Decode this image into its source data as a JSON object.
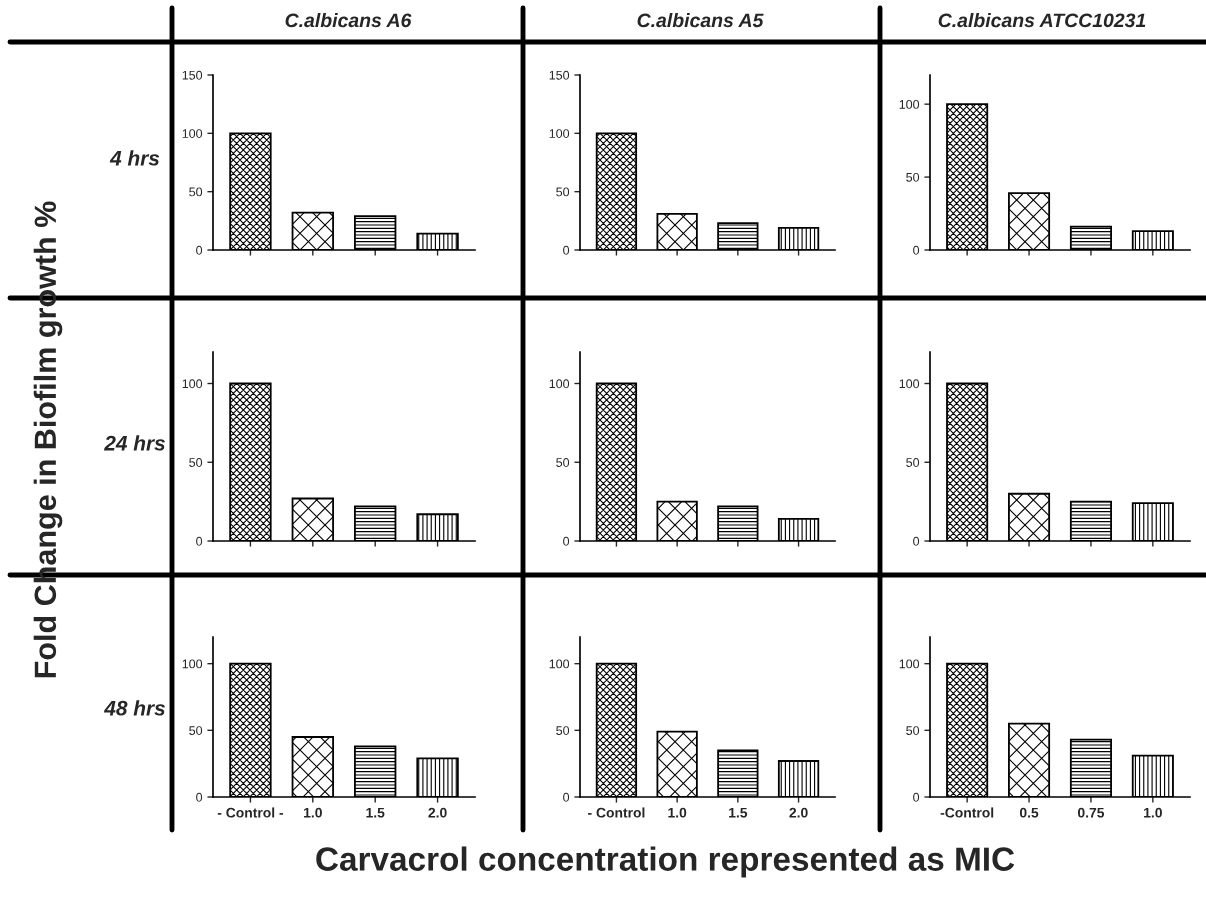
{
  "chart_data": [
    {
      "type": "bar",
      "title": "C.albicans A6",
      "ylabel": "4 hrs",
      "annotations": [
        "Fold Change in Biofilm growth %",
        "Carvacrol concentration represented as MIC"
      ],
      "categories": [
        null,
        null,
        null,
        null
      ],
      "values": [
        100,
        32,
        29,
        14
      ],
      "color": "#000000",
      "ylim": [
        0,
        150
      ],
      "yticks": [
        0,
        50,
        100,
        150
      ],
      "tick_labels": "y"
    },
    {
      "type": "bar",
      "title": "C.albicans A5",
      "categories": [
        null,
        null,
        null,
        null
      ],
      "values": [
        100,
        31,
        23,
        19
      ],
      "color": "#000000",
      "ylim": [
        0,
        150
      ],
      "yticks": [
        0,
        50,
        100,
        150
      ],
      "tick_labels": "y"
    },
    {
      "type": "bar",
      "title": "C.albicans ATCC10231",
      "categories": [
        null,
        null,
        null,
        null
      ],
      "values": [
        100,
        39,
        16,
        13
      ],
      "color": "#000000",
      "ylim": [
        0,
        120
      ],
      "yticks": [
        0,
        50,
        100
      ],
      "tick_labels": "y"
    },
    {
      "type": "bar",
      "ylabel": "24 hrs",
      "categories": [
        null,
        null,
        null,
        null
      ],
      "values": [
        100,
        27,
        22,
        17
      ],
      "color": "#000000",
      "ylim": [
        0,
        120
      ],
      "yticks": [
        0,
        50,
        100
      ],
      "tick_labels": "y"
    },
    {
      "type": "bar",
      "categories": [
        null,
        null,
        null,
        null
      ],
      "values": [
        100,
        25,
        22,
        14
      ],
      "color": "#000000",
      "ylim": [
        0,
        120
      ],
      "yticks": [
        0,
        50,
        100
      ],
      "tick_labels": "y"
    },
    {
      "type": "bar",
      "categories": [
        null,
        null,
        null,
        null
      ],
      "values": [
        100,
        30,
        25,
        24
      ],
      "color": "#000000",
      "ylim": [
        0,
        120
      ],
      "yticks": [
        0,
        50,
        100
      ],
      "tick_labels": "y"
    },
    {
      "type": "bar",
      "ylabel": "48 hrs",
      "categories": [
        "- Control -",
        "1.0",
        "1.5",
        "2.0"
      ],
      "values": [
        100,
        45,
        38,
        29
      ],
      "color": "#000000",
      "ylim": [
        0,
        120
      ],
      "yticks": [
        0,
        50,
        100
      ]
    },
    {
      "type": "bar",
      "categories": [
        "- Control",
        "1.0",
        "1.5",
        "2.0"
      ],
      "values": [
        100,
        49,
        35,
        27
      ],
      "color": "#000000",
      "ylim": [
        0,
        120
      ],
      "yticks": [
        0,
        50,
        100
      ]
    },
    {
      "type": "bar",
      "categories": [
        "-Control",
        "0.5",
        "0.75",
        "1.0"
      ],
      "values": [
        100,
        55,
        43,
        31
      ],
      "color": "#000000",
      "ylim": [
        0,
        120
      ],
      "yticks": [
        0,
        50,
        100
      ]
    }
  ]
}
